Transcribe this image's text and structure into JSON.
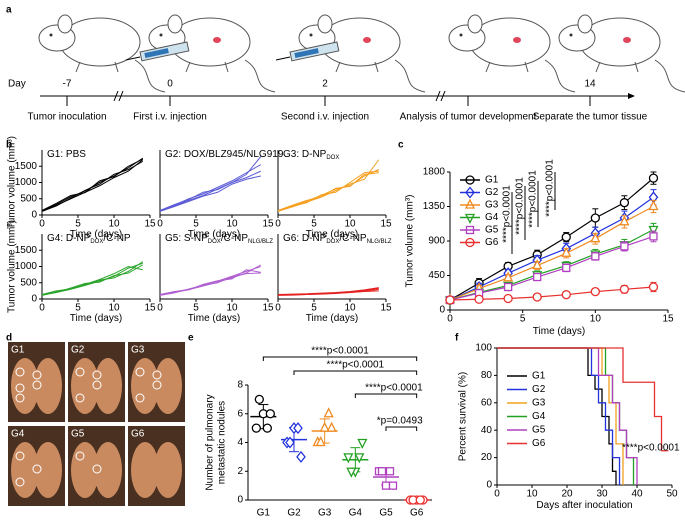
{
  "panel_labels": [
    "a",
    "b",
    "c",
    "d",
    "e",
    "f"
  ],
  "timeline": {
    "day_label": "Day",
    "days": [
      -7,
      0,
      2,
      14
    ],
    "events": [
      "Tumor inoculation",
      "First i.v. injection",
      "Second i.v. injection",
      "Analysis of tumor development",
      "Separate the tumor tissue"
    ]
  },
  "images": {
    "labels": [
      "G1",
      "G2",
      "G3",
      "G4",
      "G5",
      "G6"
    ]
  },
  "chart_data": [
    {
      "type": "line",
      "title": [
        {
          "text": "G1: PBS"
        }
      ],
      "color": "#000000",
      "xlabel": "Time (days)",
      "ylabel": "Tumor volume (mm³)",
      "x": [
        0,
        2,
        4,
        6,
        8,
        10,
        12,
        14
      ],
      "xlim": [
        0,
        15
      ],
      "xticks": [
        0,
        5,
        10,
        15
      ],
      "ylim": [
        0,
        2000
      ],
      "yticks": [
        0,
        500,
        1000,
        1500
      ],
      "series": [
        {
          "values": [
            120,
            300,
            500,
            700,
            900,
            1150,
            1350,
            1700
          ]
        },
        {
          "values": [
            130,
            330,
            560,
            740,
            1000,
            1200,
            1450,
            1750
          ]
        },
        {
          "values": [
            110,
            280,
            520,
            760,
            950,
            1250,
            1400,
            1650
          ]
        },
        {
          "values": [
            140,
            360,
            600,
            690,
            1050,
            1180,
            1500,
            1720
          ]
        }
      ]
    },
    {
      "type": "line",
      "title": [
        {
          "text": "G2: DOX/BLZ945/NLG919"
        }
      ],
      "color": "#5b5bd6",
      "xlabel": "Time (days)",
      "x": [
        0,
        2,
        4,
        6,
        8,
        10,
        12,
        14
      ],
      "xlim": [
        0,
        15
      ],
      "xticks": [
        0,
        5,
        10,
        15
      ],
      "ylim": [
        0,
        2000
      ],
      "series": [
        {
          "values": [
            120,
            280,
            450,
            600,
            800,
            1000,
            1250,
            1800
          ]
        },
        {
          "values": [
            130,
            300,
            500,
            650,
            850,
            1050,
            1300,
            1550
          ]
        },
        {
          "values": [
            110,
            260,
            420,
            580,
            700,
            950,
            1100,
            1200
          ]
        },
        {
          "values": [
            140,
            320,
            480,
            700,
            780,
            1000,
            1150,
            1350
          ]
        }
      ]
    },
    {
      "type": "line",
      "title": [
        {
          "text": "G3: D-NP"
        },
        {
          "text": "DOX",
          "sub": true
        }
      ],
      "color": "#f5a020",
      "xlabel": "Time (days)",
      "x": [
        0,
        2,
        4,
        6,
        8,
        10,
        12,
        14
      ],
      "xlim": [
        0,
        15
      ],
      "xticks": [
        0,
        5,
        10,
        15
      ],
      "ylim": [
        0,
        2000
      ],
      "series": [
        {
          "values": [
            120,
            250,
            400,
            550,
            750,
            950,
            1100,
            1700
          ]
        },
        {
          "values": [
            130,
            280,
            430,
            600,
            800,
            900,
            1200,
            1400
          ]
        },
        {
          "values": [
            110,
            260,
            380,
            620,
            700,
            1000,
            1300,
            1350
          ]
        },
        {
          "values": [
            140,
            300,
            450,
            560,
            820,
            880,
            1250,
            1300
          ]
        }
      ]
    },
    {
      "type": "line",
      "title": [
        {
          "text": "G4: D-NP"
        },
        {
          "text": "DOX",
          "sub": true
        },
        {
          "text": "/C-NP"
        }
      ],
      "color": "#2ca52c",
      "xlabel": "Time (days)",
      "ylabel": "Tumor volume (mm³)",
      "x": [
        0,
        2,
        4,
        6,
        8,
        10,
        12,
        14
      ],
      "xlim": [
        0,
        15
      ],
      "xticks": [
        0,
        5,
        10,
        15
      ],
      "ylim": [
        0,
        2000
      ],
      "yticks": [
        0,
        500,
        1000,
        1500
      ],
      "series": [
        {
          "values": [
            120,
            200,
            300,
            420,
            550,
            700,
            950,
            1100
          ]
        },
        {
          "values": [
            130,
            230,
            320,
            450,
            600,
            780,
            1000,
            900
          ]
        },
        {
          "values": [
            110,
            210,
            340,
            480,
            520,
            720,
            800,
            1050
          ]
        },
        {
          "values": [
            140,
            250,
            310,
            440,
            580,
            650,
            850,
            1150
          ]
        }
      ]
    },
    {
      "type": "line",
      "title": [
        {
          "text": "G5: S-NP"
        },
        {
          "text": "DOX",
          "sub": true
        },
        {
          "text": "/C-NP"
        },
        {
          "text": "NLG/BLZ",
          "sub": true
        }
      ],
      "color": "#b060d0",
      "xlabel": "Time (days)",
      "x": [
        0,
        2,
        4,
        6,
        8,
        10,
        12,
        14
      ],
      "xlim": [
        0,
        15
      ],
      "xticks": [
        0,
        5,
        10,
        15
      ],
      "ylim": [
        0,
        2000
      ],
      "series": [
        {
          "values": [
            120,
            200,
            290,
            400,
            520,
            650,
            800,
            1050
          ]
        },
        {
          "values": [
            130,
            220,
            300,
            430,
            550,
            700,
            850,
            1000
          ]
        },
        {
          "values": [
            110,
            190,
            310,
            420,
            500,
            680,
            780,
            800
          ]
        },
        {
          "values": [
            140,
            230,
            280,
            450,
            560,
            620,
            900,
            820
          ]
        }
      ]
    },
    {
      "type": "line",
      "title": [
        {
          "text": "G6: D-NP"
        },
        {
          "text": "DOX",
          "sub": true
        },
        {
          "text": "/C-NP"
        },
        {
          "text": "NLG/BLZ",
          "sub": true
        }
      ],
      "color": "#e52222",
      "xlabel": "Time (days)",
      "x": [
        0,
        2,
        4,
        6,
        8,
        10,
        12,
        14
      ],
      "xlim": [
        0,
        15
      ],
      "xticks": [
        0,
        5,
        10,
        15
      ],
      "ylim": [
        0,
        2000
      ],
      "series": [
        {
          "values": [
            120,
            130,
            140,
            150,
            170,
            200,
            230,
            250
          ]
        },
        {
          "values": [
            130,
            140,
            150,
            170,
            190,
            220,
            260,
            330
          ]
        },
        {
          "values": [
            110,
            120,
            140,
            160,
            180,
            200,
            240,
            300
          ]
        },
        {
          "values": [
            140,
            150,
            160,
            180,
            200,
            230,
            280,
            350
          ]
        }
      ]
    },
    {
      "type": "line",
      "xlabel": "Time (days)",
      "ylabel": "Tumor volume (mm³)",
      "x": [
        0,
        2,
        4,
        6,
        8,
        10,
        12,
        14
      ],
      "xlim": [
        0,
        15
      ],
      "xticks": [
        0,
        5,
        10,
        15
      ],
      "ylim": [
        0,
        1800
      ],
      "yticks": [
        0,
        450,
        900,
        1350,
        1800
      ],
      "legend": "upper left",
      "annotations": [
        "****p<0.0001",
        "****p<0.0001",
        "****p<0.0001",
        "****p<0.0001"
      ],
      "series": [
        {
          "name": "G1",
          "color": "#000000",
          "marker": "circle",
          "values": [
            130,
            350,
            570,
            720,
            950,
            1200,
            1400,
            1720
          ],
          "errors": [
            20,
            60,
            50,
            60,
            60,
            120,
            90,
            80
          ]
        },
        {
          "name": "G2",
          "color": "#2233dd",
          "marker": "diamond",
          "values": [
            130,
            300,
            480,
            650,
            800,
            1000,
            1200,
            1470
          ],
          "errors": [
            20,
            50,
            50,
            60,
            70,
            80,
            90,
            100
          ]
        },
        {
          "name": "G3",
          "color": "#f08a20",
          "marker": "triangle",
          "values": [
            130,
            280,
            420,
            580,
            740,
            930,
            1150,
            1350
          ],
          "errors": [
            20,
            40,
            40,
            50,
            60,
            70,
            80,
            80
          ]
        },
        {
          "name": "G4",
          "color": "#22a022",
          "marker": "triangle-down",
          "values": [
            130,
            230,
            320,
            460,
            580,
            730,
            850,
            1050
          ],
          "errors": [
            20,
            30,
            40,
            50,
            50,
            60,
            70,
            80
          ]
        },
        {
          "name": "G5",
          "color": "#b040c0",
          "marker": "square",
          "values": [
            130,
            220,
            300,
            430,
            550,
            700,
            830,
            960
          ],
          "errors": [
            20,
            30,
            30,
            40,
            50,
            50,
            60,
            70
          ]
        },
        {
          "name": "G6",
          "color": "#e83030",
          "marker": "circle",
          "values": [
            130,
            140,
            150,
            170,
            200,
            240,
            270,
            300
          ],
          "errors": [
            20,
            20,
            20,
            20,
            30,
            40,
            50,
            60
          ]
        }
      ]
    },
    {
      "type": "strip",
      "ylabel": [
        "Number of pulmonary",
        "metastatic nodules"
      ],
      "categories": [
        "G1",
        "G2",
        "G3",
        "G4",
        "G5",
        "G6"
      ],
      "ylim": [
        0,
        8
      ],
      "yticks": [
        0,
        2,
        4,
        6,
        8
      ],
      "annotations": [
        "****p<0.0001",
        "****p<0.0001",
        "****p<0.0001",
        "*p=0.0493"
      ],
      "series": [
        {
          "color": "#000000",
          "marker": "circle",
          "values": [
            5,
            6,
            6,
            7,
            5
          ],
          "mean": 5.8,
          "sd": 0.84
        },
        {
          "color": "#2233dd",
          "marker": "diamond",
          "values": [
            4,
            5,
            3,
            4,
            5
          ],
          "mean": 4.2,
          "sd": 0.84
        },
        {
          "color": "#f08a20",
          "marker": "triangle",
          "values": [
            4,
            5,
            5,
            4,
            6
          ],
          "mean": 4.8,
          "sd": 0.84
        },
        {
          "color": "#22a022",
          "marker": "triangle-down",
          "values": [
            3,
            2,
            4,
            2,
            3
          ],
          "mean": 2.8,
          "sd": 0.84
        },
        {
          "color": "#b040c0",
          "marker": "square",
          "values": [
            2,
            1,
            1,
            2,
            2
          ],
          "mean": 1.6,
          "sd": 0.55
        },
        {
          "color": "#e83030",
          "marker": "circle",
          "values": [
            0,
            0,
            0,
            0,
            0
          ],
          "mean": 0,
          "sd": 0
        }
      ]
    },
    {
      "type": "step",
      "xlabel": "Days after inoculation",
      "ylabel": "Percent survival (%)",
      "xlim": [
        0,
        50
      ],
      "xticks": [
        0,
        10,
        20,
        30,
        40,
        50
      ],
      "ylim": [
        0,
        100
      ],
      "yticks": [
        0,
        20,
        40,
        60,
        80,
        100
      ],
      "legend": "center left",
      "annotation": "****p<0.0001",
      "series": [
        {
          "name": "G1",
          "color": "#000000",
          "x": [
            0,
            26,
            28,
            30,
            32,
            33,
            34
          ],
          "values": [
            100,
            80,
            70,
            50,
            30,
            10,
            0
          ]
        },
        {
          "name": "G2",
          "color": "#2233dd",
          "x": [
            0,
            27,
            29,
            31,
            33,
            35
          ],
          "values": [
            100,
            80,
            60,
            40,
            20,
            0
          ]
        },
        {
          "name": "G3",
          "color": "#f0a020",
          "x": [
            0,
            30,
            32,
            34,
            36
          ],
          "values": [
            100,
            80,
            60,
            30,
            0
          ]
        },
        {
          "name": "G4",
          "color": "#22a022",
          "x": [
            0,
            31,
            33,
            35,
            37,
            39
          ],
          "values": [
            100,
            80,
            60,
            40,
            20,
            0
          ]
        },
        {
          "name": "G5",
          "color": "#b040c0",
          "x": [
            0,
            29,
            33,
            35,
            37,
            40
          ],
          "values": [
            100,
            80,
            60,
            40,
            20,
            0
          ]
        },
        {
          "name": "G6",
          "color": "#e83030",
          "x": [
            0,
            36,
            45,
            47,
            49
          ],
          "values": [
            100,
            75,
            50,
            25,
            25
          ]
        }
      ]
    }
  ]
}
